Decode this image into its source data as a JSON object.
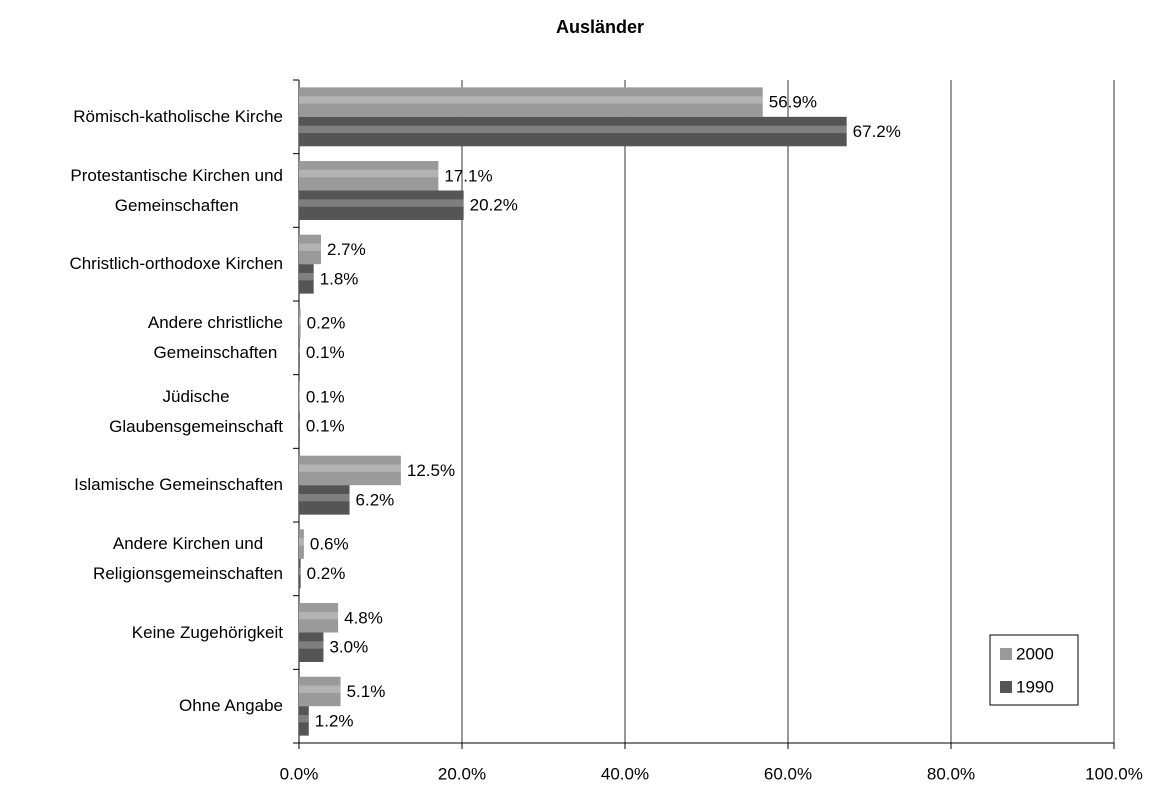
{
  "chart_data": {
    "type": "bar",
    "orientation": "horizontal",
    "title": "Ausländer",
    "categories": [
      "Römisch-katholische Kirche",
      "Protestantische Kirchen und\nGemeinschaften",
      "Christlich-orthodoxe Kirchen",
      "Andere christliche\nGemeinschaften",
      "Jüdische\nGlaubensgemeinschaft",
      "Islamische Gemeinschaften",
      "Andere Kirchen und\nReligionsgemeinschaften",
      "Keine Zugehörigkeit",
      "Ohne Angabe"
    ],
    "series": [
      {
        "name": "2000",
        "color": "#9a9a9a",
        "values": [
          56.9,
          17.1,
          2.7,
          0.2,
          0.1,
          12.5,
          0.6,
          4.8,
          5.1
        ],
        "value_labels": [
          "56.9%",
          "17.1%",
          "2.7%",
          "0.2%",
          "0.1%",
          "12.5%",
          "0.6%",
          "4.8%",
          "5.1%"
        ]
      },
      {
        "name": "1990",
        "color": "#555555",
        "values": [
          67.2,
          20.2,
          1.8,
          0.1,
          0.1,
          6.2,
          0.2,
          3.0,
          1.2
        ],
        "value_labels": [
          "67.2%",
          "20.2%",
          "1.8%",
          "0.1%",
          "0.1%",
          "6.2%",
          "0.2%",
          "3.0%",
          "1.2%"
        ]
      }
    ],
    "xlim": [
      0,
      100
    ],
    "xticks": [
      {
        "value": 0,
        "label": "0.0%"
      },
      {
        "value": 20,
        "label": "20.0%"
      },
      {
        "value": 40,
        "label": "40.0%"
      },
      {
        "value": 60,
        "label": "60.0%"
      },
      {
        "value": 80,
        "label": "80.0%"
      },
      {
        "value": 100,
        "label": "100.0%"
      }
    ],
    "grid": true,
    "legend": "bottom-right"
  }
}
